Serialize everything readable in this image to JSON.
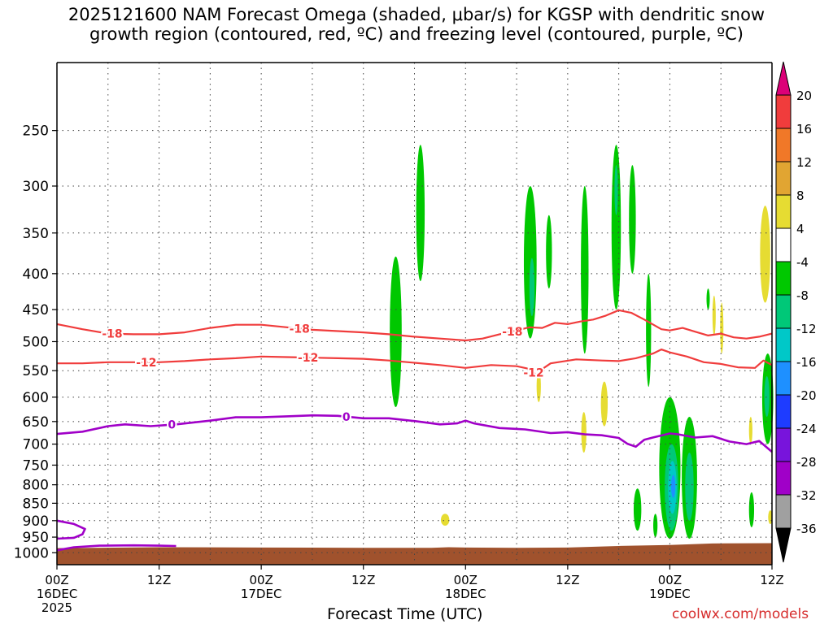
{
  "chart_data": {
    "type": "heatmap",
    "title_lines": [
      "2025121600 NAM Forecast Omega (shaded, μbar/s) for KGSP with dendritic snow",
      "growth region (contoured, red, ºC) and freezing level (contoured, purple, ºC)"
    ],
    "xlabel": "Forecast Time (UTC)",
    "ylabel": "",
    "credit": "coolwx.com/models",
    "y_scale": "log-pressure (hPa), inverted",
    "ylim": [
      1040,
      200
    ],
    "y_ticks": [
      250,
      300,
      350,
      400,
      450,
      500,
      550,
      600,
      650,
      700,
      750,
      800,
      850,
      900,
      950,
      1000
    ],
    "xlim_hours": [
      0,
      84
    ],
    "x_ticks": [
      {
        "hour": 0,
        "line1": "00Z",
        "line2": "16DEC",
        "line3": "2025"
      },
      {
        "hour": 12,
        "line1": "12Z",
        "line2": "",
        "line3": ""
      },
      {
        "hour": 24,
        "line1": "00Z",
        "line2": "17DEC",
        "line3": ""
      },
      {
        "hour": 36,
        "line1": "12Z",
        "line2": "",
        "line3": ""
      },
      {
        "hour": 48,
        "line1": "00Z",
        "line2": "18DEC",
        "line3": ""
      },
      {
        "hour": 60,
        "line1": "12Z",
        "line2": "",
        "line3": ""
      },
      {
        "hour": 72,
        "line1": "00Z",
        "line2": "19DEC",
        "line3": ""
      },
      {
        "hour": 84,
        "line1": "12Z",
        "line2": "",
        "line3": ""
      }
    ],
    "grid": true,
    "colorbar": {
      "levels": [
        20,
        16,
        12,
        8,
        4,
        -4,
        -8,
        -12,
        -16,
        -20,
        -24,
        -28,
        -32,
        -36
      ],
      "bands": [
        {
          "from": 16,
          "to": 20,
          "color": "#f03c3c"
        },
        {
          "from": 12,
          "to": 16,
          "color": "#f07828"
        },
        {
          "from": 8,
          "to": 12,
          "color": "#e1a532"
        },
        {
          "from": 4,
          "to": 8,
          "color": "#e6dc32"
        },
        {
          "from": -4,
          "to": 4,
          "color": "#ffffff"
        },
        {
          "from": -8,
          "to": -4,
          "color": "#00c800"
        },
        {
          "from": -12,
          "to": -8,
          "color": "#00c878"
        },
        {
          "from": -16,
          "to": -12,
          "color": "#00c8c8"
        },
        {
          "from": -20,
          "to": -16,
          "color": "#1e90ff"
        },
        {
          "from": -24,
          "to": -20,
          "color": "#1e3cff"
        },
        {
          "from": -28,
          "to": -24,
          "color": "#7814dc"
        },
        {
          "from": -32,
          "to": -28,
          "color": "#a000c8"
        },
        {
          "from": -36,
          "to": -32,
          "color": "#a0a0a0"
        }
      ],
      "top_arrow_color": "#dc0078",
      "bottom_arrow_color": "#000000"
    },
    "terrain_color": "#a0522d",
    "series": [
      {
        "name": "-18",
        "color": "#f03c3c",
        "kind": "isotherm",
        "label_hours": [
          6.5,
          28.5,
          53.5
        ],
        "points": [
          [
            0,
            472
          ],
          [
            3,
            480
          ],
          [
            6,
            487
          ],
          [
            9,
            488
          ],
          [
            12,
            488
          ],
          [
            15,
            485
          ],
          [
            18,
            478
          ],
          [
            21,
            473
          ],
          [
            24,
            473
          ],
          [
            27,
            477
          ],
          [
            30,
            481
          ],
          [
            33,
            483
          ],
          [
            36,
            485
          ],
          [
            39,
            488
          ],
          [
            42,
            492
          ],
          [
            45,
            495
          ],
          [
            48,
            498
          ],
          [
            50,
            495
          ],
          [
            52,
            488
          ],
          [
            54,
            482
          ],
          [
            55.5,
            477
          ],
          [
            57,
            478
          ],
          [
            58.5,
            470
          ],
          [
            60,
            472
          ],
          [
            61.5,
            468
          ],
          [
            63,
            465
          ],
          [
            64.5,
            459
          ],
          [
            66,
            451
          ],
          [
            67.5,
            455
          ],
          [
            69,
            465
          ],
          [
            71,
            480
          ],
          [
            72,
            482
          ],
          [
            73.5,
            478
          ],
          [
            75,
            484
          ],
          [
            76.5,
            490
          ],
          [
            78,
            487
          ],
          [
            79.5,
            493
          ],
          [
            81,
            495
          ],
          [
            82.5,
            492
          ],
          [
            84,
            487
          ]
        ]
      },
      {
        "name": "-12",
        "color": "#f03c3c",
        "kind": "isotherm",
        "label_hours": [
          10.5,
          29.5,
          56
        ],
        "points": [
          [
            0,
            537
          ],
          [
            3,
            537
          ],
          [
            6,
            535
          ],
          [
            9,
            535
          ],
          [
            12,
            535
          ],
          [
            15,
            533
          ],
          [
            18,
            530
          ],
          [
            21,
            528
          ],
          [
            24,
            525
          ],
          [
            27,
            526
          ],
          [
            30,
            527
          ],
          [
            33,
            528
          ],
          [
            36,
            529
          ],
          [
            39,
            532
          ],
          [
            42,
            536
          ],
          [
            45,
            540
          ],
          [
            48,
            545
          ],
          [
            51,
            540
          ],
          [
            54,
            542
          ],
          [
            55.5,
            547
          ],
          [
            56.5,
            560
          ],
          [
            57.2,
            545
          ],
          [
            58,
            537
          ],
          [
            61,
            530
          ],
          [
            64,
            532
          ],
          [
            66,
            533
          ],
          [
            68,
            528
          ],
          [
            70,
            520
          ],
          [
            71,
            513
          ],
          [
            72,
            518
          ],
          [
            74,
            525
          ],
          [
            76,
            535
          ],
          [
            78,
            538
          ],
          [
            80,
            544
          ],
          [
            82,
            545
          ],
          [
            83,
            532
          ],
          [
            84,
            540
          ]
        ]
      },
      {
        "name": "0",
        "color": "#a000c8",
        "kind": "freezing-level",
        "label_hours": [
          13.5,
          34
        ],
        "points": [
          [
            0,
            677
          ],
          [
            3,
            672
          ],
          [
            6,
            660
          ],
          [
            8,
            656
          ],
          [
            11,
            660
          ],
          [
            14,
            656
          ],
          [
            18,
            648
          ],
          [
            21,
            641
          ],
          [
            24,
            641
          ],
          [
            27,
            639
          ],
          [
            30,
            637
          ],
          [
            33,
            638
          ],
          [
            36,
            643
          ],
          [
            39,
            643
          ],
          [
            42,
            649
          ],
          [
            45,
            656
          ],
          [
            47,
            654
          ],
          [
            48,
            648
          ],
          [
            49,
            654
          ],
          [
            52,
            664
          ],
          [
            55,
            667
          ],
          [
            58,
            675
          ],
          [
            60,
            673
          ],
          [
            62,
            678
          ],
          [
            64,
            680
          ],
          [
            66,
            686
          ],
          [
            67,
            699
          ],
          [
            68,
            706
          ],
          [
            69,
            690
          ],
          [
            70,
            685
          ],
          [
            72,
            676
          ],
          [
            73,
            678
          ],
          [
            75,
            685
          ],
          [
            77,
            682
          ],
          [
            79,
            694
          ],
          [
            81,
            700
          ],
          [
            82.5,
            693
          ],
          [
            84,
            718
          ]
        ]
      },
      {
        "name": "0",
        "color": "#a000c8",
        "kind": "freezing-level-lower",
        "label_hours": [],
        "points": [
          [
            0,
            955
          ],
          [
            2,
            952
          ],
          [
            3,
            941
          ],
          [
            3.3,
            925
          ],
          [
            2,
            910
          ],
          [
            0,
            900
          ]
        ]
      },
      {
        "name": "0",
        "color": "#a000c8",
        "kind": "freezing-level-lower",
        "label_hours": [],
        "points": [
          [
            0,
            992
          ],
          [
            2,
            982
          ],
          [
            5,
            977
          ],
          [
            9,
            976
          ],
          [
            12,
            977
          ],
          [
            14,
            978
          ]
        ]
      }
    ],
    "omega_features": [
      {
        "center_hour": 39.8,
        "top": 378,
        "bottom": 620,
        "width_hours": 1.4,
        "value": -6
      },
      {
        "center_hour": 42.7,
        "top": 262,
        "bottom": 410,
        "width_hours": 1.0,
        "value": -6
      },
      {
        "center_hour": 55.6,
        "top": 300,
        "bottom": 495,
        "width_hours": 1.5,
        "value": -8
      },
      {
        "center_hour": 55.8,
        "top": 380,
        "bottom": 460,
        "width_hours": 0.6,
        "value": -12
      },
      {
        "center_hour": 57.8,
        "top": 330,
        "bottom": 420,
        "width_hours": 0.7,
        "value": -6
      },
      {
        "center_hour": 62.0,
        "top": 300,
        "bottom": 520,
        "width_hours": 0.9,
        "value": -6
      },
      {
        "center_hour": 65.7,
        "top": 262,
        "bottom": 450,
        "width_hours": 1.1,
        "value": -6
      },
      {
        "center_hour": 65.7,
        "top": 280,
        "bottom": 330,
        "width_hours": 0.4,
        "value": -12
      },
      {
        "center_hour": 67.6,
        "top": 280,
        "bottom": 400,
        "width_hours": 0.8,
        "value": -6
      },
      {
        "center_hour": 69.5,
        "top": 400,
        "bottom": 580,
        "width_hours": 0.6,
        "value": -6
      },
      {
        "center_hour": 72.0,
        "top": 600,
        "bottom": 955,
        "width_hours": 2.5,
        "value": -6
      },
      {
        "center_hour": 72.2,
        "top": 700,
        "bottom": 930,
        "width_hours": 1.6,
        "value": -10
      },
      {
        "center_hour": 72.3,
        "top": 740,
        "bottom": 880,
        "width_hours": 1.0,
        "value": -15
      },
      {
        "center_hour": 72.4,
        "top": 775,
        "bottom": 835,
        "width_hours": 0.5,
        "value": -20
      },
      {
        "center_hour": 74.3,
        "top": 640,
        "bottom": 955,
        "width_hours": 1.8,
        "value": -6
      },
      {
        "center_hour": 74.3,
        "top": 720,
        "bottom": 900,
        "width_hours": 1.0,
        "value": -11
      },
      {
        "center_hour": 68.2,
        "top": 810,
        "bottom": 930,
        "width_hours": 0.9,
        "value": -6
      },
      {
        "center_hour": 70.3,
        "top": 880,
        "bottom": 950,
        "width_hours": 0.5,
        "value": -6
      },
      {
        "center_hour": 83.5,
        "top": 520,
        "bottom": 700,
        "width_hours": 1.3,
        "value": -6
      },
      {
        "center_hour": 83.4,
        "top": 560,
        "bottom": 640,
        "width_hours": 0.6,
        "value": -10
      },
      {
        "center_hour": 81.6,
        "top": 820,
        "bottom": 920,
        "width_hours": 0.6,
        "value": -6
      },
      {
        "center_hour": 83.2,
        "top": 320,
        "bottom": 440,
        "width_hours": 1.2,
        "value": 5
      },
      {
        "center_hour": 64.3,
        "top": 570,
        "bottom": 660,
        "width_hours": 0.8,
        "value": 5
      },
      {
        "center_hour": 61.9,
        "top": 630,
        "bottom": 720,
        "width_hours": 0.6,
        "value": 5
      },
      {
        "center_hour": 56.6,
        "top": 550,
        "bottom": 610,
        "width_hours": 0.5,
        "value": 5
      },
      {
        "center_hour": 45.6,
        "top": 880,
        "bottom": 915,
        "width_hours": 1.0,
        "value": 5
      },
      {
        "center_hour": 83.8,
        "top": 870,
        "bottom": 910,
        "width_hours": 0.5,
        "value": 5
      },
      {
        "center_hour": 81.5,
        "top": 640,
        "bottom": 700,
        "width_hours": 0.4,
        "value": 5
      },
      {
        "center_hour": 77.2,
        "top": 430,
        "bottom": 490,
        "width_hours": 0.3,
        "value": 5
      },
      {
        "center_hour": 76.5,
        "top": 420,
        "bottom": 450,
        "width_hours": 0.2,
        "value": -6
      },
      {
        "center_hour": 78.1,
        "top": 440,
        "bottom": 520,
        "width_hours": 0.3,
        "value": 5
      }
    ],
    "terrain": [
      [
        0,
        985
      ],
      [
        12,
        982
      ],
      [
        24,
        983
      ],
      [
        36,
        984
      ],
      [
        44,
        984
      ],
      [
        46,
        982
      ],
      [
        48,
        983
      ],
      [
        54,
        984
      ],
      [
        60,
        983
      ],
      [
        66,
        978
      ],
      [
        72,
        975
      ],
      [
        77,
        970
      ],
      [
        84,
        969
      ]
    ]
  }
}
